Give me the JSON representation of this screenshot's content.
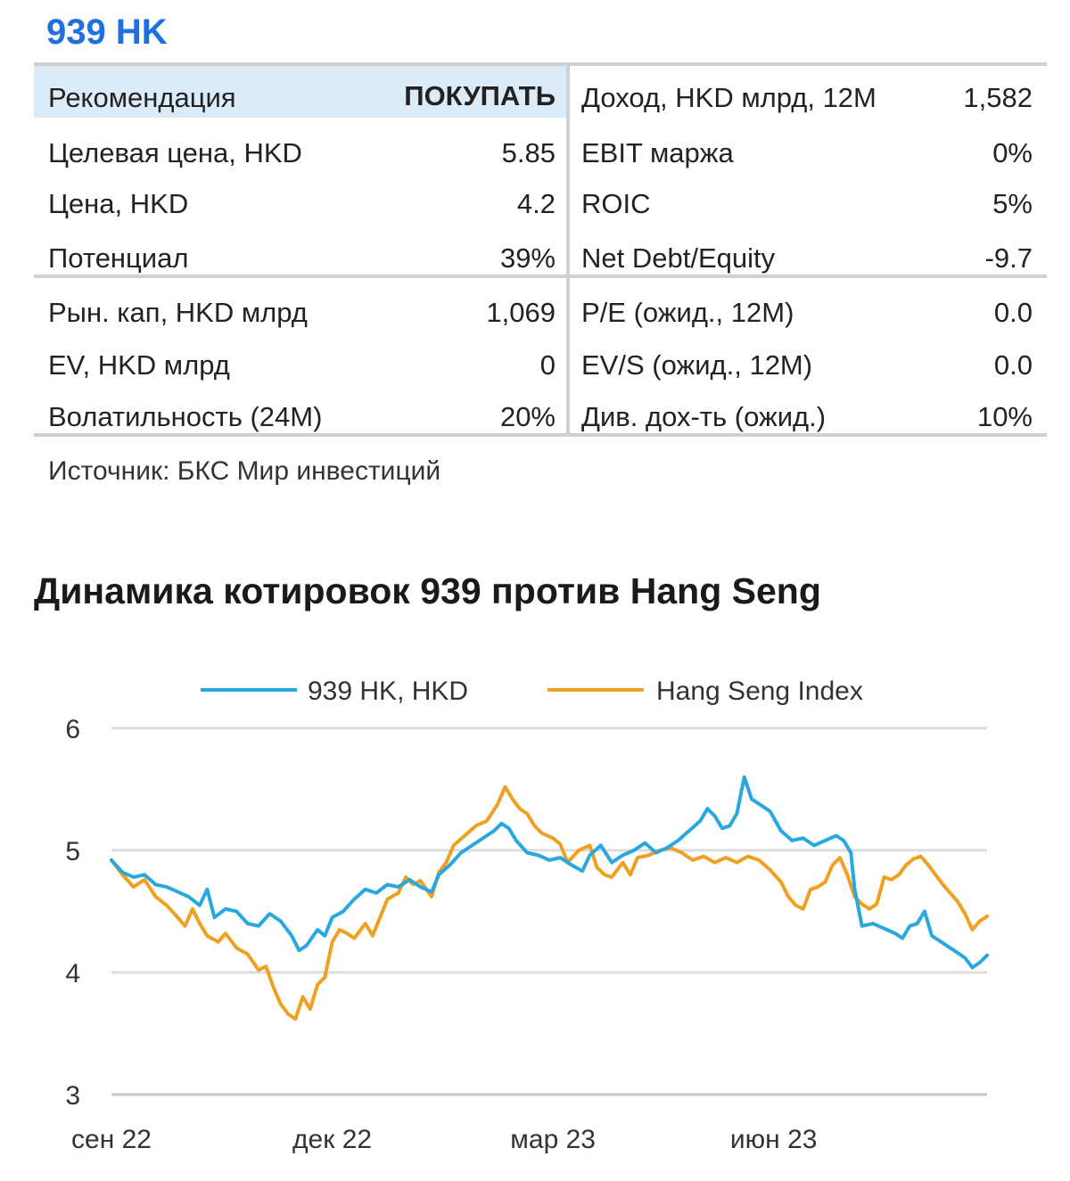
{
  "header": {
    "ticker": "939 HK"
  },
  "stats": {
    "left": [
      {
        "label": "Рекомендация",
        "value": "ПОКУПАТЬ"
      },
      {
        "label": "Целевая цена, HKD",
        "value": "5.85"
      },
      {
        "label": "Цена, HKD",
        "value": "4.2"
      },
      {
        "label": "Потенциал",
        "value": "39%"
      },
      {
        "label": "Рын. кап, HKD млрд",
        "value": "1,069"
      },
      {
        "label": "EV, HKD млрд",
        "value": "0"
      },
      {
        "label": "Волатильность (24M)",
        "value": "20%"
      }
    ],
    "right": [
      {
        "label": "Доход, HKD млрд, 12M",
        "value": "1,582"
      },
      {
        "label": "EBIT маржа",
        "value": "0%"
      },
      {
        "label": "ROIC",
        "value": "5%"
      },
      {
        "label": "Net Debt/Equity",
        "value": "-9.7"
      },
      {
        "label": "P/E (ожид., 12M)",
        "value": "0.0"
      },
      {
        "label": "EV/S (ожид., 12M)",
        "value": "0.0"
      },
      {
        "label": "Див. дох-ть (ожид.)",
        "value": "10%"
      }
    ],
    "recommendation_bg": "#dcebf8",
    "source": "Источник: БКС Мир инвестиций"
  },
  "chart_title": "Динамика котировок 939 против Hang Seng",
  "chart_data": {
    "type": "line",
    "title": "Динамика котировок 939 против Hang Seng",
    "xlabel": "",
    "ylabel": "",
    "ylim": [
      3,
      6
    ],
    "yticks": [
      3,
      4,
      5,
      6
    ],
    "xtick_labels": [
      {
        "label": "сен 22",
        "x": 0
      },
      {
        "label": "дек 22",
        "x": 3
      },
      {
        "label": "мар 23",
        "x": 6
      },
      {
        "label": "июн 23",
        "x": 9
      }
    ],
    "xlim": [
      0,
      11.9
    ],
    "grid": true,
    "legend": "top-center",
    "series": [
      {
        "name": "939 HK, HKD",
        "color": "#29a8e0",
        "points": [
          [
            0.0,
            4.92
          ],
          [
            0.15,
            4.82
          ],
          [
            0.3,
            4.78
          ],
          [
            0.45,
            4.8
          ],
          [
            0.6,
            4.72
          ],
          [
            0.75,
            4.7
          ],
          [
            0.9,
            4.66
          ],
          [
            1.05,
            4.62
          ],
          [
            1.2,
            4.55
          ],
          [
            1.3,
            4.68
          ],
          [
            1.4,
            4.45
          ],
          [
            1.55,
            4.52
          ],
          [
            1.7,
            4.5
          ],
          [
            1.85,
            4.4
          ],
          [
            2.0,
            4.38
          ],
          [
            2.15,
            4.48
          ],
          [
            2.3,
            4.42
          ],
          [
            2.45,
            4.3
          ],
          [
            2.55,
            4.18
          ],
          [
            2.65,
            4.22
          ],
          [
            2.8,
            4.35
          ],
          [
            2.9,
            4.3
          ],
          [
            3.0,
            4.45
          ],
          [
            3.15,
            4.5
          ],
          [
            3.3,
            4.6
          ],
          [
            3.45,
            4.68
          ],
          [
            3.6,
            4.65
          ],
          [
            3.75,
            4.72
          ],
          [
            3.9,
            4.7
          ],
          [
            4.05,
            4.76
          ],
          [
            4.2,
            4.7
          ],
          [
            4.35,
            4.66
          ],
          [
            4.45,
            4.8
          ],
          [
            4.6,
            4.88
          ],
          [
            4.75,
            4.98
          ],
          [
            4.9,
            5.04
          ],
          [
            5.05,
            5.1
          ],
          [
            5.2,
            5.16
          ],
          [
            5.3,
            5.22
          ],
          [
            5.4,
            5.18
          ],
          [
            5.5,
            5.08
          ],
          [
            5.65,
            4.98
          ],
          [
            5.8,
            4.96
          ],
          [
            5.95,
            4.92
          ],
          [
            6.1,
            4.94
          ],
          [
            6.25,
            4.88
          ],
          [
            6.4,
            4.83
          ],
          [
            6.5,
            4.96
          ],
          [
            6.65,
            5.04
          ],
          [
            6.8,
            4.9
          ],
          [
            6.95,
            4.96
          ],
          [
            7.1,
            5.0
          ],
          [
            7.25,
            5.06
          ],
          [
            7.4,
            4.98
          ],
          [
            7.55,
            5.02
          ],
          [
            7.7,
            5.08
          ],
          [
            7.85,
            5.16
          ],
          [
            8.0,
            5.24
          ],
          [
            8.1,
            5.34
          ],
          [
            8.2,
            5.28
          ],
          [
            8.3,
            5.18
          ],
          [
            8.4,
            5.2
          ],
          [
            8.5,
            5.3
          ],
          [
            8.6,
            5.6
          ],
          [
            8.7,
            5.42
          ],
          [
            8.8,
            5.38
          ],
          [
            8.95,
            5.32
          ],
          [
            9.1,
            5.16
          ],
          [
            9.25,
            5.08
          ],
          [
            9.4,
            5.1
          ],
          [
            9.55,
            5.04
          ],
          [
            9.7,
            5.08
          ],
          [
            9.85,
            5.12
          ],
          [
            9.95,
            5.08
          ],
          [
            10.05,
            4.98
          ],
          [
            10.1,
            4.68
          ],
          [
            10.2,
            4.38
          ],
          [
            10.35,
            4.4
          ],
          [
            10.5,
            4.36
          ],
          [
            10.65,
            4.32
          ],
          [
            10.75,
            4.28
          ],
          [
            10.85,
            4.38
          ],
          [
            10.95,
            4.4
          ],
          [
            11.05,
            4.5
          ],
          [
            11.15,
            4.3
          ],
          [
            11.3,
            4.24
          ],
          [
            11.45,
            4.18
          ],
          [
            11.6,
            4.12
          ],
          [
            11.7,
            4.04
          ],
          [
            11.8,
            4.08
          ],
          [
            11.9,
            4.14
          ]
        ]
      },
      {
        "name": "Hang Seng Index",
        "color": "#f0a020",
        "points": [
          [
            0.0,
            4.92
          ],
          [
            0.15,
            4.8
          ],
          [
            0.3,
            4.7
          ],
          [
            0.45,
            4.76
          ],
          [
            0.6,
            4.62
          ],
          [
            0.75,
            4.55
          ],
          [
            0.9,
            4.45
          ],
          [
            1.0,
            4.38
          ],
          [
            1.1,
            4.52
          ],
          [
            1.2,
            4.4
          ],
          [
            1.3,
            4.3
          ],
          [
            1.45,
            4.25
          ],
          [
            1.55,
            4.32
          ],
          [
            1.7,
            4.2
          ],
          [
            1.85,
            4.15
          ],
          [
            2.0,
            4.02
          ],
          [
            2.1,
            4.05
          ],
          [
            2.2,
            3.88
          ],
          [
            2.3,
            3.74
          ],
          [
            2.4,
            3.66
          ],
          [
            2.5,
            3.62
          ],
          [
            2.6,
            3.8
          ],
          [
            2.7,
            3.7
          ],
          [
            2.8,
            3.9
          ],
          [
            2.9,
            3.96
          ],
          [
            3.0,
            4.25
          ],
          [
            3.1,
            4.35
          ],
          [
            3.2,
            4.32
          ],
          [
            3.3,
            4.28
          ],
          [
            3.45,
            4.4
          ],
          [
            3.55,
            4.3
          ],
          [
            3.65,
            4.45
          ],
          [
            3.75,
            4.6
          ],
          [
            3.9,
            4.65
          ],
          [
            4.0,
            4.78
          ],
          [
            4.1,
            4.72
          ],
          [
            4.2,
            4.75
          ],
          [
            4.35,
            4.62
          ],
          [
            4.45,
            4.82
          ],
          [
            4.55,
            4.9
          ],
          [
            4.65,
            5.04
          ],
          [
            4.8,
            5.12
          ],
          [
            4.95,
            5.2
          ],
          [
            5.1,
            5.24
          ],
          [
            5.25,
            5.38
          ],
          [
            5.35,
            5.52
          ],
          [
            5.45,
            5.42
          ],
          [
            5.55,
            5.34
          ],
          [
            5.65,
            5.3
          ],
          [
            5.75,
            5.2
          ],
          [
            5.85,
            5.14
          ],
          [
            6.0,
            5.1
          ],
          [
            6.1,
            5.05
          ],
          [
            6.2,
            4.9
          ],
          [
            6.35,
            5.0
          ],
          [
            6.5,
            5.04
          ],
          [
            6.6,
            4.86
          ],
          [
            6.7,
            4.8
          ],
          [
            6.8,
            4.78
          ],
          [
            6.95,
            4.9
          ],
          [
            7.05,
            4.8
          ],
          [
            7.15,
            4.94
          ],
          [
            7.3,
            4.96
          ],
          [
            7.45,
            5.0
          ],
          [
            7.6,
            5.02
          ],
          [
            7.75,
            4.98
          ],
          [
            7.9,
            4.92
          ],
          [
            8.05,
            4.95
          ],
          [
            8.2,
            4.9
          ],
          [
            8.35,
            4.94
          ],
          [
            8.5,
            4.9
          ],
          [
            8.65,
            4.95
          ],
          [
            8.8,
            4.92
          ],
          [
            8.95,
            4.84
          ],
          [
            9.1,
            4.74
          ],
          [
            9.2,
            4.62
          ],
          [
            9.3,
            4.55
          ],
          [
            9.4,
            4.52
          ],
          [
            9.5,
            4.68
          ],
          [
            9.6,
            4.7
          ],
          [
            9.7,
            4.74
          ],
          [
            9.8,
            4.88
          ],
          [
            9.9,
            4.94
          ],
          [
            10.0,
            4.8
          ],
          [
            10.1,
            4.62
          ],
          [
            10.2,
            4.56
          ],
          [
            10.3,
            4.52
          ],
          [
            10.4,
            4.56
          ],
          [
            10.5,
            4.78
          ],
          [
            10.6,
            4.76
          ],
          [
            10.7,
            4.8
          ],
          [
            10.8,
            4.88
          ],
          [
            10.9,
            4.93
          ],
          [
            11.0,
            4.95
          ],
          [
            11.1,
            4.88
          ],
          [
            11.2,
            4.8
          ],
          [
            11.3,
            4.72
          ],
          [
            11.4,
            4.65
          ],
          [
            11.5,
            4.58
          ],
          [
            11.6,
            4.48
          ],
          [
            11.7,
            4.35
          ],
          [
            11.8,
            4.42
          ],
          [
            11.9,
            4.46
          ]
        ]
      }
    ]
  }
}
